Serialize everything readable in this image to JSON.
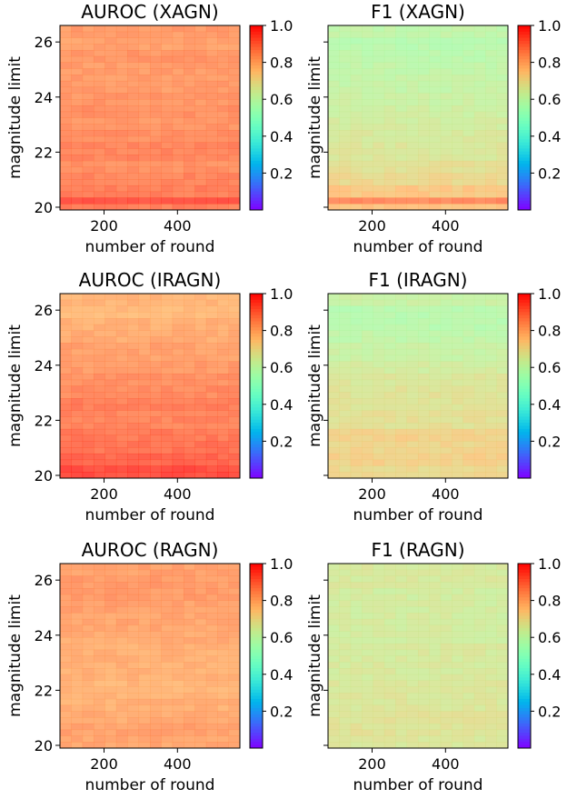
{
  "chart_data": [
    {
      "type": "heatmap",
      "title": "AUROC (XAGN)",
      "xlabel": "number of round",
      "ylabel": "magnitude limit",
      "x_ticks": [
        200,
        400
      ],
      "y_ticks": [
        20,
        22,
        24,
        26
      ],
      "xlim": [
        80,
        570
      ],
      "ylim": [
        19.9,
        26.6
      ],
      "colorbar": {
        "ticks": [
          "0.2",
          "0.4",
          "0.6",
          "0.8",
          "1.0"
        ],
        "range": [
          0.0,
          1.0
        ],
        "colormap": "rainbow"
      },
      "ystrip": [
        {
          "y": 26.5,
          "v": 0.83
        },
        {
          "y": 26.0,
          "v": 0.82
        },
        {
          "y": 25.5,
          "v": 0.84
        },
        {
          "y": 25.0,
          "v": 0.83
        },
        {
          "y": 24.5,
          "v": 0.83
        },
        {
          "y": 24.0,
          "v": 0.84
        },
        {
          "y": 23.5,
          "v": 0.85
        },
        {
          "y": 23.0,
          "v": 0.84
        },
        {
          "y": 22.5,
          "v": 0.85
        },
        {
          "y": 22.0,
          "v": 0.87
        },
        {
          "y": 21.5,
          "v": 0.85
        },
        {
          "y": 21.0,
          "v": 0.87
        },
        {
          "y": 20.5,
          "v": 0.88
        },
        {
          "y": 20.3,
          "v": 0.95
        },
        {
          "y": 20.0,
          "v": 0.88
        }
      ]
    },
    {
      "type": "heatmap",
      "title": "F1 (XAGN)",
      "xlabel": "number of round",
      "ylabel": "magnitude limit",
      "x_ticks": [
        200,
        400
      ],
      "y_ticks": [
        20,
        22,
        24,
        26
      ],
      "xlim": [
        80,
        570
      ],
      "ylim": [
        19.9,
        26.6
      ],
      "colorbar": {
        "ticks": [
          "0.2",
          "0.4",
          "0.6",
          "0.8",
          "1.0"
        ],
        "range": [
          0.0,
          1.0
        ],
        "colormap": "rainbow"
      },
      "ystrip": [
        {
          "y": 26.5,
          "v": 0.6
        },
        {
          "y": 26.0,
          "v": 0.58
        },
        {
          "y": 25.5,
          "v": 0.59
        },
        {
          "y": 25.0,
          "v": 0.6
        },
        {
          "y": 24.5,
          "v": 0.61
        },
        {
          "y": 24.0,
          "v": 0.62
        },
        {
          "y": 23.5,
          "v": 0.63
        },
        {
          "y": 23.0,
          "v": 0.64
        },
        {
          "y": 22.5,
          "v": 0.65
        },
        {
          "y": 22.0,
          "v": 0.66
        },
        {
          "y": 21.5,
          "v": 0.68
        },
        {
          "y": 21.0,
          "v": 0.7
        },
        {
          "y": 20.5,
          "v": 0.74
        },
        {
          "y": 20.3,
          "v": 0.86
        },
        {
          "y": 20.0,
          "v": 0.75
        }
      ]
    },
    {
      "type": "heatmap",
      "title": "AUROC (IRAGN)",
      "xlabel": "number of round",
      "ylabel": "magnitude limit",
      "x_ticks": [
        200,
        400
      ],
      "y_ticks": [
        20,
        22,
        24,
        26
      ],
      "xlim": [
        80,
        570
      ],
      "ylim": [
        19.9,
        26.6
      ],
      "colorbar": {
        "ticks": [
          "0.2",
          "0.4",
          "0.6",
          "0.8",
          "1.0"
        ],
        "range": [
          0.0,
          1.0
        ],
        "colormap": "rainbow"
      },
      "ystrip": [
        {
          "y": 26.5,
          "v": 0.78
        },
        {
          "y": 26.0,
          "v": 0.77
        },
        {
          "y": 25.5,
          "v": 0.79
        },
        {
          "y": 25.0,
          "v": 0.8
        },
        {
          "y": 24.5,
          "v": 0.82
        },
        {
          "y": 24.0,
          "v": 0.83
        },
        {
          "y": 23.5,
          "v": 0.85
        },
        {
          "y": 23.0,
          "v": 0.86
        },
        {
          "y": 22.5,
          "v": 0.88
        },
        {
          "y": 22.0,
          "v": 0.87
        },
        {
          "y": 21.5,
          "v": 0.89
        },
        {
          "y": 21.0,
          "v": 0.9
        },
        {
          "y": 20.5,
          "v": 0.92
        },
        {
          "y": 20.0,
          "v": 0.96
        }
      ]
    },
    {
      "type": "heatmap",
      "title": "F1 (IRAGN)",
      "xlabel": "number of round",
      "ylabel": "magnitude limit",
      "x_ticks": [
        200,
        400
      ],
      "y_ticks": [
        20,
        22,
        24,
        26
      ],
      "xlim": [
        80,
        570
      ],
      "ylim": [
        19.9,
        26.6
      ],
      "colorbar": {
        "ticks": [
          "0.2",
          "0.4",
          "0.6",
          "0.8",
          "1.0"
        ],
        "range": [
          0.0,
          1.0
        ],
        "colormap": "rainbow"
      },
      "ystrip": [
        {
          "y": 26.5,
          "v": 0.62
        },
        {
          "y": 26.0,
          "v": 0.58
        },
        {
          "y": 25.5,
          "v": 0.58
        },
        {
          "y": 25.0,
          "v": 0.6
        },
        {
          "y": 24.5,
          "v": 0.62
        },
        {
          "y": 24.0,
          "v": 0.64
        },
        {
          "y": 23.5,
          "v": 0.66
        },
        {
          "y": 23.0,
          "v": 0.67
        },
        {
          "y": 22.5,
          "v": 0.67
        },
        {
          "y": 22.0,
          "v": 0.68
        },
        {
          "y": 21.5,
          "v": 0.72
        },
        {
          "y": 21.0,
          "v": 0.71
        },
        {
          "y": 20.5,
          "v": 0.72
        },
        {
          "y": 20.0,
          "v": 0.7
        }
      ]
    },
    {
      "type": "heatmap",
      "title": "AUROC (RAGN)",
      "xlabel": "number of round",
      "ylabel": "magnitude limit",
      "x_ticks": [
        200,
        400
      ],
      "y_ticks": [
        20,
        22,
        24,
        26
      ],
      "xlim": [
        80,
        570
      ],
      "ylim": [
        19.9,
        26.6
      ],
      "colorbar": {
        "ticks": [
          "0.2",
          "0.4",
          "0.6",
          "0.8",
          "1.0"
        ],
        "range": [
          0.0,
          1.0
        ],
        "colormap": "rainbow"
      },
      "ystrip": [
        {
          "y": 26.5,
          "v": 0.82
        },
        {
          "y": 26.0,
          "v": 0.83
        },
        {
          "y": 25.5,
          "v": 0.83
        },
        {
          "y": 25.0,
          "v": 0.82
        },
        {
          "y": 24.5,
          "v": 0.81
        },
        {
          "y": 24.0,
          "v": 0.8
        },
        {
          "y": 23.5,
          "v": 0.79
        },
        {
          "y": 23.0,
          "v": 0.79
        },
        {
          "y": 22.5,
          "v": 0.79
        },
        {
          "y": 22.0,
          "v": 0.78
        },
        {
          "y": 21.5,
          "v": 0.79
        },
        {
          "y": 21.0,
          "v": 0.8
        },
        {
          "y": 20.5,
          "v": 0.82
        },
        {
          "y": 20.0,
          "v": 0.81
        }
      ]
    },
    {
      "type": "heatmap",
      "title": "F1 (RAGN)",
      "xlabel": "number of round",
      "ylabel": "magnitude limit",
      "x_ticks": [
        200,
        400
      ],
      "y_ticks": [
        20,
        22,
        24,
        26
      ],
      "xlim": [
        80,
        570
      ],
      "ylim": [
        19.9,
        26.6
      ],
      "colorbar": {
        "ticks": [
          "0.2",
          "0.4",
          "0.6",
          "0.8",
          "1.0"
        ],
        "range": [
          0.0,
          1.0
        ],
        "colormap": "rainbow"
      },
      "ystrip": [
        {
          "y": 26.5,
          "v": 0.65
        },
        {
          "y": 26.0,
          "v": 0.65
        },
        {
          "y": 25.5,
          "v": 0.64
        },
        {
          "y": 25.0,
          "v": 0.64
        },
        {
          "y": 24.5,
          "v": 0.64
        },
        {
          "y": 24.0,
          "v": 0.64
        },
        {
          "y": 23.5,
          "v": 0.65
        },
        {
          "y": 23.0,
          "v": 0.65
        },
        {
          "y": 22.5,
          "v": 0.65
        },
        {
          "y": 22.0,
          "v": 0.66
        },
        {
          "y": 21.5,
          "v": 0.66
        },
        {
          "y": 21.0,
          "v": 0.67
        },
        {
          "y": 20.5,
          "v": 0.67
        },
        {
          "y": 20.0,
          "v": 0.66
        }
      ]
    }
  ]
}
